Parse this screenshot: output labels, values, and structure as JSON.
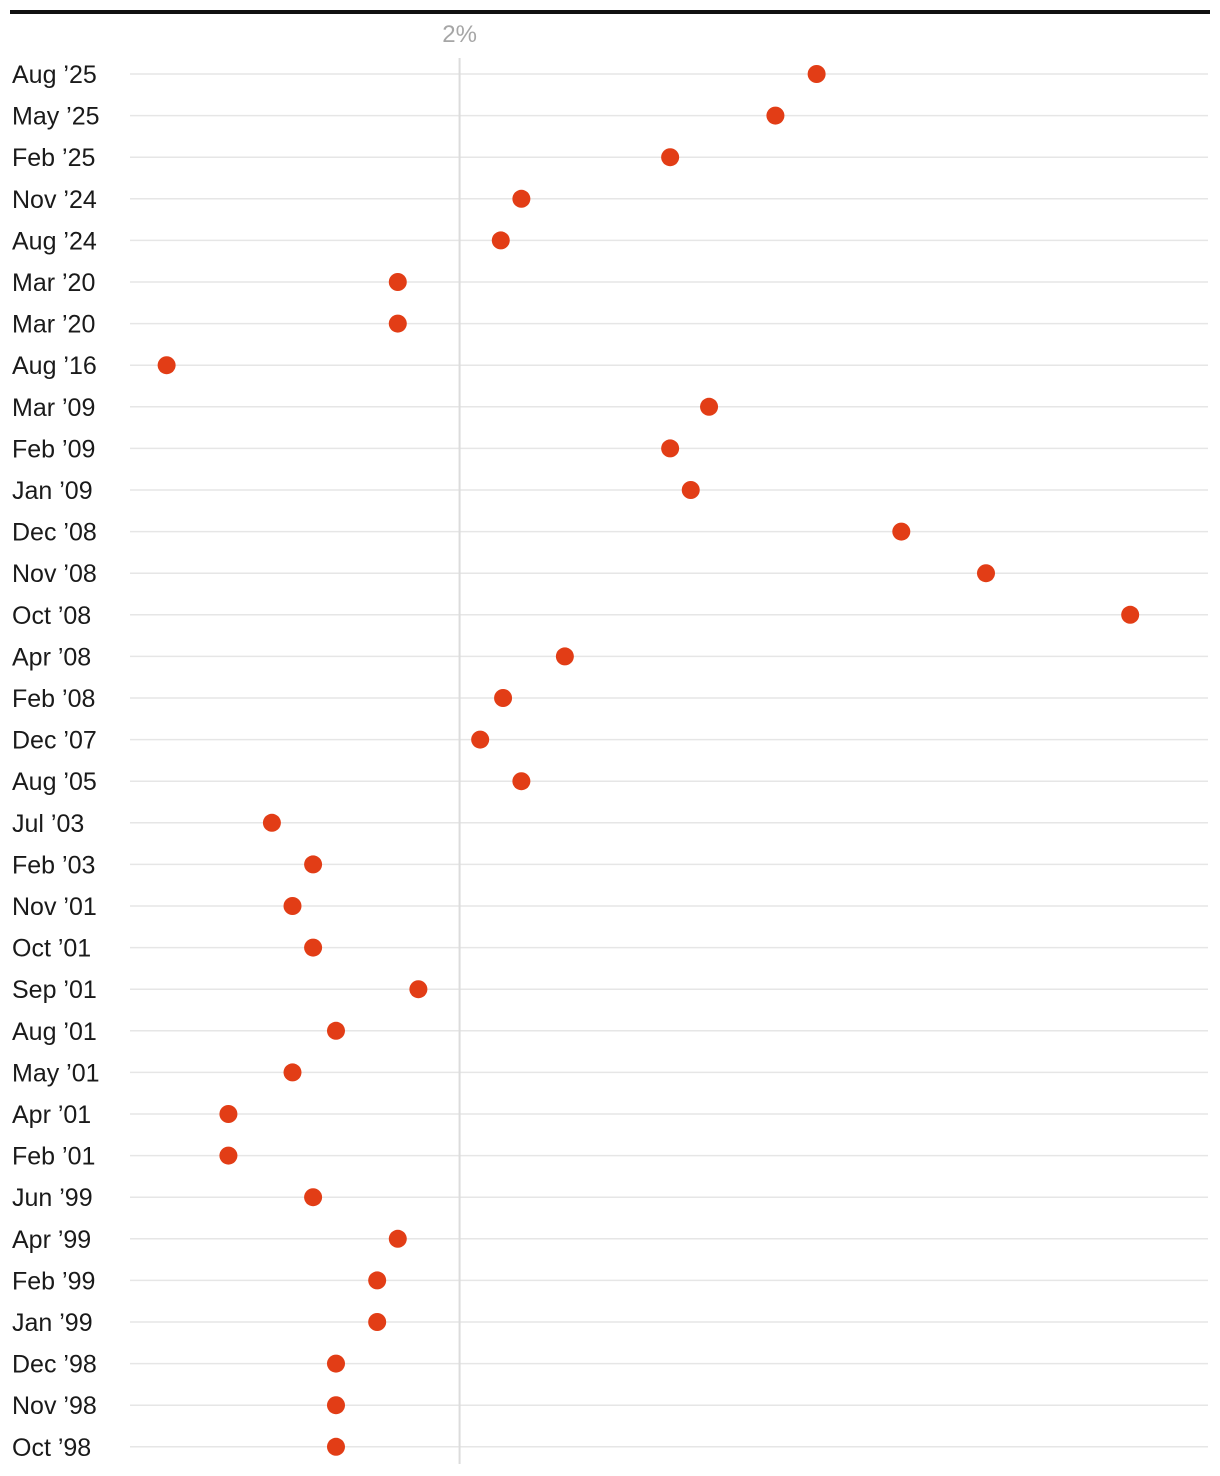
{
  "chart_data": {
    "type": "scatter",
    "title": "",
    "xlabel": "",
    "ylabel": "",
    "x_ticks": [
      {
        "value": 2,
        "label": "2%"
      }
    ],
    "xlim": [
      0.56,
      5.27
    ],
    "grid": true,
    "colors": {
      "dot": "#e23d16",
      "gridline": "#e6e6e6",
      "reference_line": "#dcdcdc",
      "top_rule": "#111111",
      "tick_label": "#a6a6a6",
      "row_label": "#1a1a1a"
    },
    "categories": [
      "Aug ’25",
      "May ’25",
      "Feb ’25",
      "Nov ’24",
      "Aug ’24",
      "Mar ’20",
      "Mar ’20",
      "Aug ’16",
      "Mar ’09",
      "Feb ’09",
      "Jan ’09",
      "Dec ’08",
      "Nov ’08",
      "Oct ’08",
      "Apr ’08",
      "Feb ’08",
      "Dec ’07",
      "Aug ’05",
      "Jul ’03",
      "Feb ’03",
      "Nov ’01",
      "Oct ’01",
      "Sep ’01",
      "Aug ’01",
      "May ’01",
      "Apr ’01",
      "Feb ’01",
      "Jun ’99",
      "Apr ’99",
      "Feb ’99",
      "Jan ’99",
      "Dec ’98",
      "Nov ’98",
      "Oct ’98"
    ],
    "values": [
      3.56,
      3.38,
      2.92,
      2.27,
      2.18,
      1.73,
      1.73,
      0.72,
      3.09,
      2.92,
      3.01,
      3.93,
      4.3,
      4.93,
      2.46,
      2.19,
      2.09,
      2.27,
      1.18,
      1.36,
      1.27,
      1.36,
      1.82,
      1.46,
      1.27,
      0.99,
      0.99,
      1.36,
      1.73,
      1.64,
      1.64,
      1.46,
      1.46,
      1.46
    ]
  }
}
